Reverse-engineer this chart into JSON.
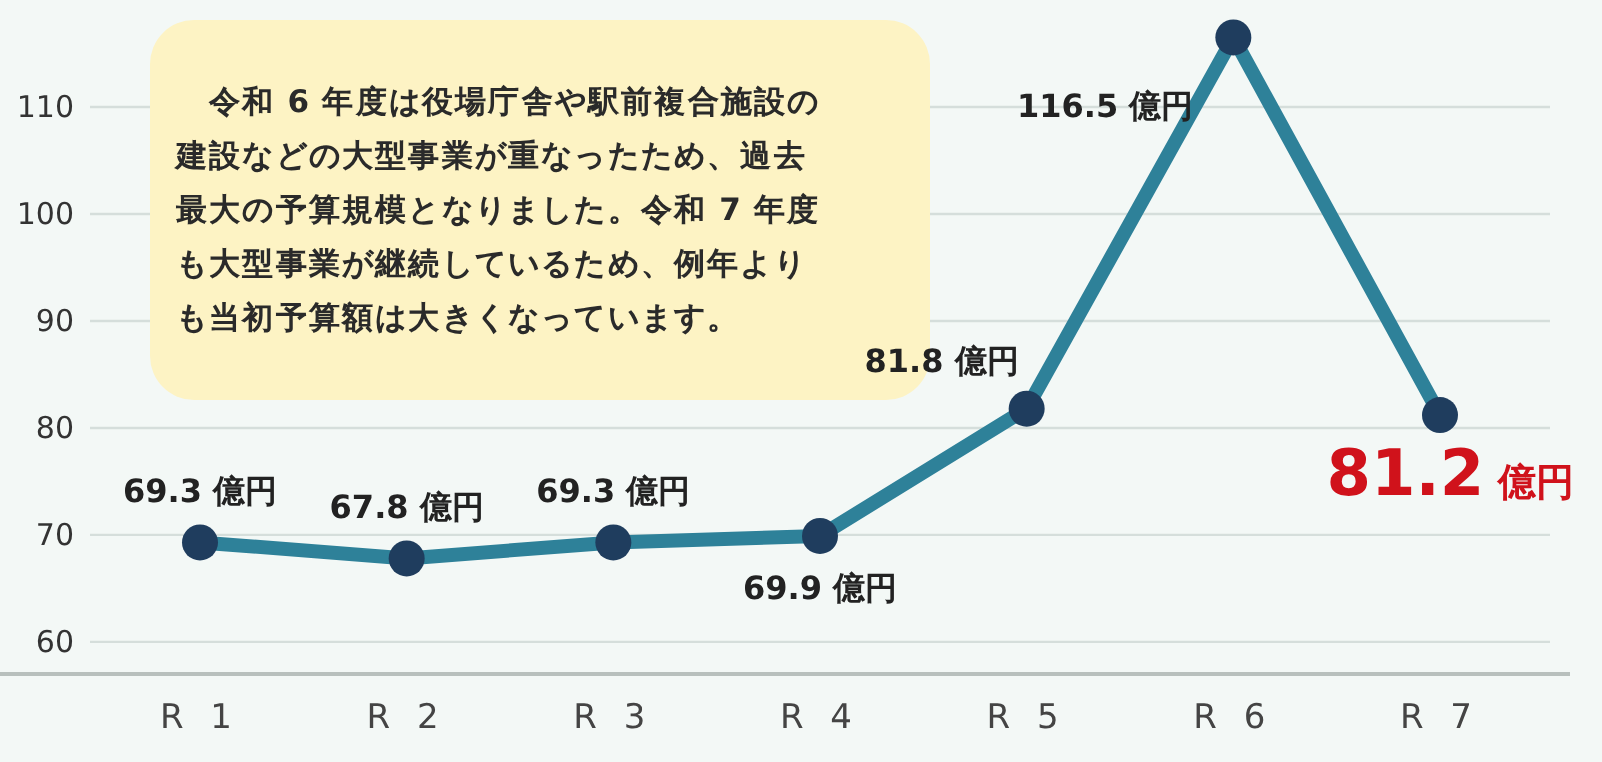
{
  "chart_data": {
    "type": "line",
    "categories": [
      "R 1",
      "R 2",
      "R 3",
      "R 4",
      "R 5",
      "R 6",
      "R 7"
    ],
    "series": [
      {
        "color": "#2e8199",
        "values": [
          69.3,
          67.8,
          69.3,
          69.9,
          81.8,
          116.5,
          81.2
        ]
      }
    ],
    "value_labels": [
      "69.3 億円",
      "67.8 億円",
      "69.3 億円",
      "69.9 億円",
      "81.8 億円",
      "116.5 億円",
      "81.2 億円"
    ],
    "ylim": [
      57,
      120
    ],
    "yticks": [
      60,
      70,
      80,
      90,
      100,
      110
    ],
    "grid": "y",
    "marker": "circle",
    "line_style": "solid",
    "annotations": [
      "　令和 6 年度は役場庁舎や駅前複合施設の建設などの大型事業が重なったため、過去最大の予算規模となりました。令和 7 年度も大型事業が継続しているため、例年よりも当初予算額は大きくなっています。"
    ]
  }
}
